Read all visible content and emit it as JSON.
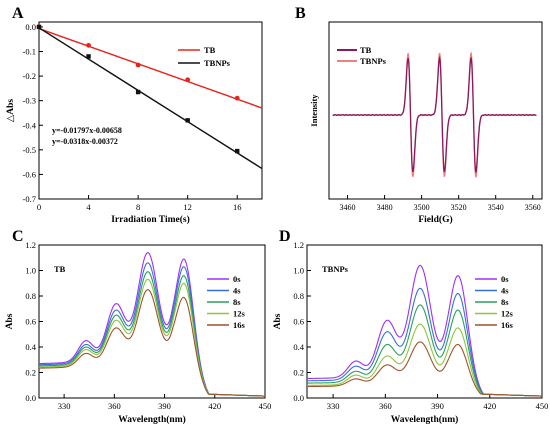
{
  "chart_data": [
    {
      "panel": "A",
      "type": "scatter",
      "xlabel": "Irradiation Time(s)",
      "ylabel": "△Abs",
      "xlim": [
        0,
        18
      ],
      "ylim": [
        -0.7,
        0.02
      ],
      "xticks": [
        0,
        4,
        8,
        12,
        16
      ],
      "yticks": [
        0.0,
        -0.1,
        -0.2,
        -0.3,
        -0.4,
        -0.5,
        -0.6,
        -0.7
      ],
      "legend_position": "top-right",
      "series": [
        {
          "name": "TB",
          "color": "#e8231b",
          "marker": "circle",
          "points": [
            [
              0,
              0.0
            ],
            [
              4,
              -0.075
            ],
            [
              8,
              -0.155
            ],
            [
              12,
              -0.215
            ],
            [
              16,
              -0.29
            ]
          ],
          "fit": {
            "slope": -0.01797,
            "intercept": -0.00658
          }
        },
        {
          "name": "TBNPs",
          "color": "#111111",
          "marker": "square",
          "points": [
            [
              0,
              0.0
            ],
            [
              4,
              -0.12
            ],
            [
              8,
              -0.265
            ],
            [
              12,
              -0.38
            ],
            [
              16,
              -0.505
            ]
          ],
          "fit": {
            "slope": -0.0318,
            "intercept": -0.00372
          }
        }
      ],
      "annotations": [
        "y=-0.01797x-0.00658",
        "y=-0.0318x-0.00372"
      ]
    },
    {
      "panel": "B",
      "type": "line",
      "xlabel": "Field(G)",
      "ylabel": "Intensity",
      "xlim": [
        3450,
        3565
      ],
      "xticks": [
        3460,
        3480,
        3500,
        3520,
        3540,
        3560
      ],
      "yticks_shown": false,
      "legend_position": "top-left",
      "peaks_G": [
        3494,
        3511,
        3528
      ],
      "series": [
        {
          "name": "TB",
          "color": "#8b1a5c",
          "amplitude": 0.92
        },
        {
          "name": "TBNPs",
          "color": "#f08080",
          "amplitude": 1.0
        }
      ]
    },
    {
      "panel": "C",
      "type": "line",
      "title": "TB",
      "xlabel": "Wavelength(nm)",
      "ylabel": "Abs",
      "xlim": [
        315,
        450
      ],
      "ylim": [
        0,
        1.2
      ],
      "xticks": [
        330,
        360,
        390,
        420,
        450
      ],
      "yticks": [
        0.0,
        0.2,
        0.4,
        0.6,
        0.8,
        1.0,
        1.2
      ],
      "legend_position": "top-right",
      "peak_wavelengths_nm": [
        343,
        361,
        380,
        402
      ],
      "series": [
        {
          "name": "0s",
          "color": "#9b30ff",
          "baseline": 0.3,
          "peaks": [
            0.45,
            0.74,
            1.14,
            1.09
          ]
        },
        {
          "name": "4s",
          "color": "#3a6fd8",
          "baseline": 0.29,
          "peaks": [
            0.42,
            0.69,
            1.06,
            1.03
          ]
        },
        {
          "name": "8s",
          "color": "#2aa05a",
          "baseline": 0.28,
          "peaks": [
            0.4,
            0.65,
            0.99,
            0.96
          ]
        },
        {
          "name": "12s",
          "color": "#8cc63f",
          "baseline": 0.27,
          "peaks": [
            0.38,
            0.61,
            0.93,
            0.9
          ]
        },
        {
          "name": "16s",
          "color": "#a0522d",
          "baseline": 0.26,
          "peaks": [
            0.35,
            0.55,
            0.85,
            0.79
          ]
        }
      ]
    },
    {
      "panel": "D",
      "type": "line",
      "title": "TBNPs",
      "xlabel": "Wavelength(nm)",
      "ylabel": "Abs",
      "xlim": [
        315,
        450
      ],
      "ylim": [
        0,
        1.2
      ],
      "xticks": [
        330,
        360,
        390,
        420,
        450
      ],
      "yticks": [
        0.0,
        0.2,
        0.4,
        0.6,
        0.8,
        1.0,
        1.2
      ],
      "legend_position": "top-right",
      "peak_wavelengths_nm": [
        343,
        361,
        380,
        402
      ],
      "series": [
        {
          "name": "0s",
          "color": "#9b30ff",
          "baseline": 0.17,
          "peaks": [
            0.29,
            0.61,
            1.04,
            0.96
          ]
        },
        {
          "name": "4s",
          "color": "#3a6fd8",
          "baseline": 0.15,
          "peaks": [
            0.25,
            0.52,
            0.86,
            0.82
          ]
        },
        {
          "name": "8s",
          "color": "#2aa05a",
          "baseline": 0.13,
          "peaks": [
            0.21,
            0.42,
            0.73,
            0.69
          ]
        },
        {
          "name": "12s",
          "color": "#8cc63f",
          "baseline": 0.11,
          "peaks": [
            0.18,
            0.33,
            0.58,
            0.55
          ]
        },
        {
          "name": "16s",
          "color": "#a0522d",
          "baseline": 0.1,
          "peaks": [
            0.15,
            0.26,
            0.44,
            0.42
          ]
        }
      ]
    }
  ]
}
